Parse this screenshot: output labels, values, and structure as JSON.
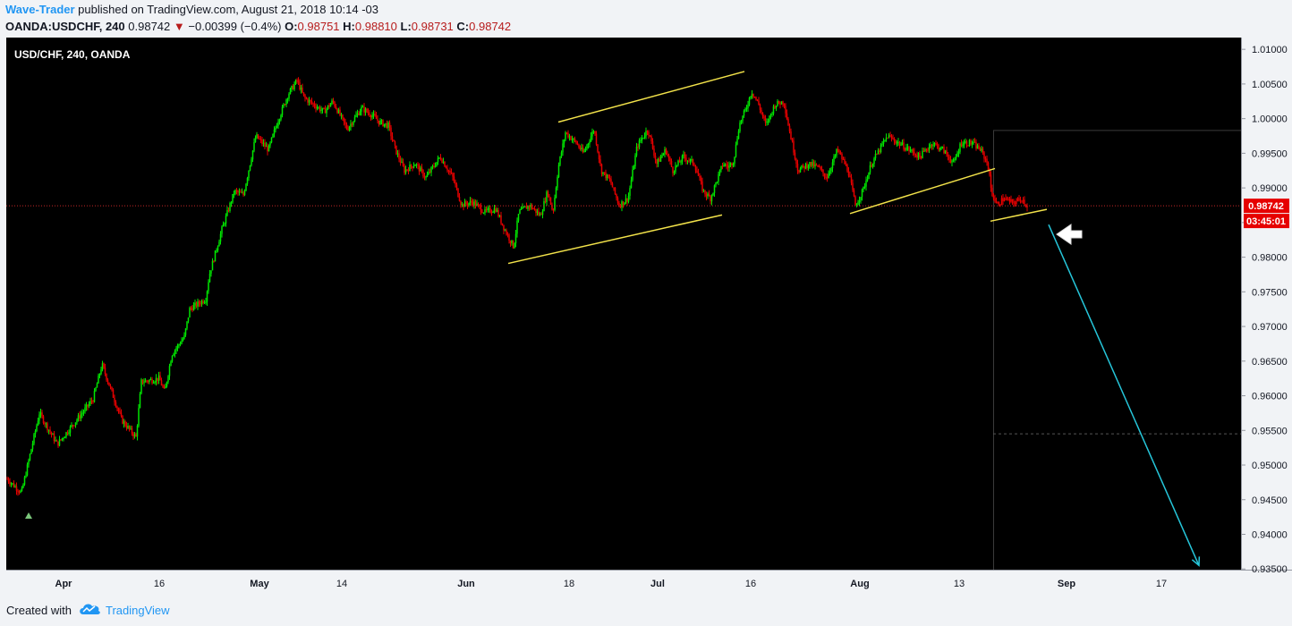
{
  "header": {
    "author": "Wave-Trader",
    "published_text": " published on TradingView.com, August 21, 2018 10:14 -03",
    "symbol": "OANDA:USDCHF, 240",
    "last": "0.98742",
    "direction_glyph": "▼",
    "change": "−0.00399 (−0.4%)",
    "o_label": "O:",
    "o_value": "0.98751",
    "h_label": "H:",
    "h_value": "0.98810",
    "l_label": "L:",
    "l_value": "0.98731",
    "c_label": "C:",
    "c_value": "0.98742"
  },
  "footer": {
    "created_with": "Created with",
    "brand": "TradingView"
  },
  "colors": {
    "bg": "#000000",
    "up": "#00e600",
    "down": "#e60000",
    "trendline": "#f2e24a",
    "arrow": "#26c6da",
    "price_line": "#c62828",
    "axis_text": "#131722",
    "marker": "#7bc67b"
  },
  "chart_data": {
    "type": "candlestick",
    "title": "USD/CHF, 240, OANDA",
    "ylim": [
      0.9349,
      1.0117
    ],
    "y_ticks": [
      "1.01000",
      "1.00500",
      "1.00000",
      "0.99500",
      "0.99000",
      "0.98500",
      "0.98000",
      "0.97500",
      "0.97000",
      "0.96500",
      "0.96000",
      "0.95500",
      "0.95000",
      "0.94500",
      "0.94000",
      "0.93500"
    ],
    "x_ticks": [
      "Apr",
      "16",
      "May",
      "14",
      "Jun",
      "18",
      "Jul",
      "16",
      "Aug",
      "13",
      "Sep",
      "17"
    ],
    "x_tick_bold": [
      true,
      false,
      true,
      false,
      true,
      false,
      true,
      false,
      true,
      false,
      true,
      false
    ],
    "last_price": 0.98742,
    "last_price_label": "0.98742",
    "countdown_label": "03:45:01",
    "price_path": [
      [
        0,
        0.948
      ],
      [
        16,
        0.946
      ],
      [
        36,
        0.9575
      ],
      [
        56,
        0.953
      ],
      [
        96,
        0.9595
      ],
      [
        106,
        0.9645
      ],
      [
        128,
        0.9565
      ],
      [
        144,
        0.954
      ],
      [
        150,
        0.962
      ],
      [
        170,
        0.9625
      ],
      [
        176,
        0.9605
      ],
      [
        184,
        0.966
      ],
      [
        198,
        0.9685
      ],
      [
        204,
        0.9725
      ],
      [
        222,
        0.974
      ],
      [
        226,
        0.9775
      ],
      [
        240,
        0.984
      ],
      [
        254,
        0.9895
      ],
      [
        264,
        0.989
      ],
      [
        278,
        0.9975
      ],
      [
        292,
        0.9955
      ],
      [
        302,
        0.9995
      ],
      [
        314,
        1.0035
      ],
      [
        324,
        1.0055
      ],
      [
        332,
        1.003
      ],
      [
        354,
        1.001
      ],
      [
        364,
        1.0025
      ],
      [
        380,
        0.9985
      ],
      [
        396,
        1.0015
      ],
      [
        408,
        1.0005
      ],
      [
        416,
        0.9995
      ],
      [
        426,
        0.999
      ],
      [
        434,
        0.9955
      ],
      [
        444,
        0.9925
      ],
      [
        456,
        0.9935
      ],
      [
        468,
        0.9915
      ],
      [
        484,
        0.9945
      ],
      [
        498,
        0.9915
      ],
      [
        508,
        0.9875
      ],
      [
        520,
        0.988
      ],
      [
        534,
        0.9865
      ],
      [
        546,
        0.987
      ],
      [
        556,
        0.984
      ],
      [
        566,
        0.9815
      ],
      [
        572,
        0.9865
      ],
      [
        584,
        0.9875
      ],
      [
        596,
        0.986
      ],
      [
        604,
        0.9895
      ],
      [
        610,
        0.9865
      ],
      [
        616,
        0.993
      ],
      [
        624,
        0.998
      ],
      [
        636,
        0.9965
      ],
      [
        644,
        0.995
      ],
      [
        656,
        0.9985
      ],
      [
        664,
        0.9925
      ],
      [
        674,
        0.991
      ],
      [
        684,
        0.9875
      ],
      [
        694,
        0.9885
      ],
      [
        704,
        0.996
      ],
      [
        716,
        0.9985
      ],
      [
        726,
        0.9935
      ],
      [
        736,
        0.9955
      ],
      [
        744,
        0.9925
      ],
      [
        756,
        0.9945
      ],
      [
        768,
        0.9935
      ],
      [
        778,
        0.9895
      ],
      [
        786,
        0.9885
      ],
      [
        800,
        0.9935
      ],
      [
        806,
        0.993
      ],
      [
        812,
        0.994
      ],
      [
        818,
        0.999
      ],
      [
        826,
        1.0015
      ],
      [
        832,
        1.004
      ],
      [
        840,
        1.002
      ],
      [
        848,
        0.999
      ],
      [
        858,
        1.002
      ],
      [
        868,
        1.0025
      ],
      [
        874,
        0.9985
      ],
      [
        884,
        0.9925
      ],
      [
        896,
        0.9935
      ],
      [
        906,
        0.993
      ],
      [
        916,
        0.9915
      ],
      [
        928,
        0.9955
      ],
      [
        940,
        0.9925
      ],
      [
        948,
        0.9875
      ],
      [
        956,
        0.9895
      ],
      [
        966,
        0.9935
      ],
      [
        984,
        0.9975
      ],
      [
        996,
        0.9965
      ],
      [
        1008,
        0.9955
      ],
      [
        1020,
        0.9945
      ],
      [
        1034,
        0.9965
      ],
      [
        1046,
        0.9955
      ],
      [
        1058,
        0.9935
      ],
      [
        1066,
        0.9965
      ],
      [
        1078,
        0.9965
      ],
      [
        1088,
        0.9955
      ],
      [
        1096,
        0.9935
      ],
      [
        1100,
        0.9895
      ],
      [
        1106,
        0.9875
      ],
      [
        1114,
        0.9885
      ],
      [
        1124,
        0.9878
      ],
      [
        1134,
        0.9885
      ],
      [
        1140,
        0.9874
      ]
    ],
    "trend_lines": [
      {
        "name": "channel-upper",
        "x1": 617,
        "y1": 0.9995,
        "x2": 825,
        "y2": 1.0068
      },
      {
        "name": "channel-lower",
        "x1": 561,
        "y1": 0.9791,
        "x2": 800,
        "y2": 0.9861
      },
      {
        "name": "aug-support",
        "x1": 943,
        "y1": 0.9863,
        "x2": 1105,
        "y2": 0.9928
      },
      {
        "name": "aug-lower",
        "x1": 1100,
        "y1": 0.9852,
        "x2": 1163,
        "y2": 0.9869
      }
    ],
    "projection": {
      "x1": 1165,
      "y1": 0.9847,
      "x2": 1333,
      "y2": 0.9355
    },
    "target_level": 0.9545,
    "box_top": 0.9983
  }
}
